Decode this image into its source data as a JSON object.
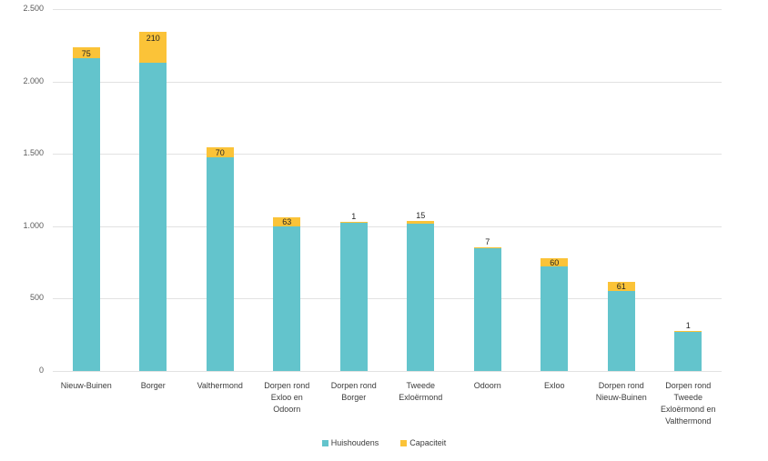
{
  "chart_data": {
    "type": "bar",
    "stacked": true,
    "title": "",
    "xlabel": "",
    "ylabel": "",
    "ylim": [
      0,
      2500
    ],
    "grid": "horizontal",
    "legend_position": "bottom",
    "yticks": [
      {
        "value": 0,
        "label": "0"
      },
      {
        "value": 500,
        "label": "500"
      },
      {
        "value": 1000,
        "label": "1.000"
      },
      {
        "value": 1500,
        "label": "1.500"
      },
      {
        "value": 2000,
        "label": "2.000"
      },
      {
        "value": 2500,
        "label": "2.500"
      }
    ],
    "categories": [
      "Nieuw-Buinen",
      "Borger",
      "Valthermond",
      "Dorpen rond Exloo en Odoorn",
      "Dorpen rond Borger",
      "Tweede Exloërmond",
      "Odoorn",
      "Exloo",
      "Dorpen rond Nieuw-Buinen",
      "Dorpen rond Tweede Exloërmond en Valthermond"
    ],
    "tick_lines": [
      "Nieuw-Buinen",
      "Borger",
      "Valthermond",
      "Dorpen rond\nExloo en\nOdoorn",
      "Dorpen rond\nBorger",
      "Tweede\nExloërmond",
      "Odoorn",
      "Exloo",
      "Dorpen rond\nNieuw-Buinen",
      "Dorpen rond\nTweede\nExloërmond en\nValthermond"
    ],
    "series": [
      {
        "name": "Huishoudens",
        "color": "#63c4cc",
        "values": [
          2160,
          2130,
          1475,
          1000,
          1030,
          1020,
          850,
          720,
          555,
          275
        ]
      },
      {
        "name": "Capaciteit",
        "color": "#fbc338",
        "values": [
          75,
          210,
          70,
          63,
          1,
          15,
          7,
          60,
          61,
          1
        ],
        "data_labels": [
          "75",
          "210",
          "70",
          "63",
          "1",
          "15",
          "7",
          "60",
          "61",
          "1"
        ]
      }
    ]
  },
  "colors": {
    "gridline": "#e2e2e2",
    "y_axis_text": "#5a5a5a",
    "x_axis_text": "#3b3b3b",
    "data_label_text": "#252525"
  }
}
